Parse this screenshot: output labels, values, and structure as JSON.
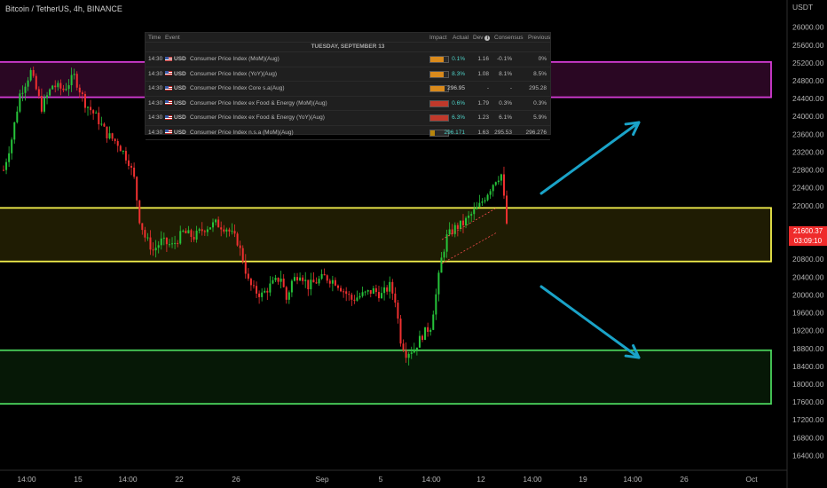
{
  "title": "Bitcoin / TetherUS, 4h, BINANCE",
  "currency": "USDT",
  "current_price": "21600.37",
  "countdown": "03:09:10",
  "colors": {
    "up": "#26c43a",
    "down": "#ef3030",
    "resistance": "#d63cd6",
    "mid": "#f3ef4c",
    "support": "#4ad25c",
    "arrow": "#1aa3c8"
  },
  "calendar": {
    "headers": {
      "time": "Time",
      "event": "Event",
      "impact": "Impact",
      "actual": "Actual",
      "dev": "Dev",
      "consensus": "Consensus",
      "previous": "Previous"
    },
    "date": "TUESDAY, SEPTEMBER 13",
    "rows": [
      {
        "time": "14:30",
        "cur": "USD",
        "event": "Consumer Price Index (MoM)(Aug)",
        "actual": "0.1%",
        "dev": "1.16",
        "consensus": "-0.1%",
        "previous": "0%",
        "impact_color": "#d98a1c",
        "impact_level": 0.75,
        "actual_color": "#4fd2c8"
      },
      {
        "time": "14:30",
        "cur": "USD",
        "event": "Consumer Price Index (YoY)(Aug)",
        "actual": "8.3%",
        "dev": "1.08",
        "consensus": "8.1%",
        "previous": "8.5%",
        "impact_color": "#d98a1c",
        "impact_level": 0.75,
        "actual_color": "#4fd2c8"
      },
      {
        "time": "14:30",
        "cur": "USD",
        "event": "Consumer Price Index Core s.a(Aug)",
        "actual": "296.95",
        "dev": "-",
        "consensus": "-",
        "previous": "295.28",
        "impact_color": "#d98a1c",
        "impact_level": 0.8,
        "actual_color": "#cfcfcf"
      },
      {
        "time": "14:30",
        "cur": "USD",
        "event": "Consumer Price Index ex Food & Energy (MoM)(Aug)",
        "actual": "0.6%",
        "dev": "1.79",
        "consensus": "0.3%",
        "previous": "0.3%",
        "impact_color": "#c0392b",
        "impact_level": 1.0,
        "actual_color": "#4fd2c8"
      },
      {
        "time": "14:30",
        "cur": "USD",
        "event": "Consumer Price Index ex Food & Energy (YoY)(Aug)",
        "actual": "6.3%",
        "dev": "1.23",
        "consensus": "6.1%",
        "previous": "5.9%",
        "impact_color": "#c0392b",
        "impact_level": 1.0,
        "actual_color": "#4fd2c8"
      },
      {
        "time": "14:30",
        "cur": "USD",
        "event": "Consumer Price Index n.s.a (MoM)(Aug)",
        "actual": "296.171",
        "dev": "1.63",
        "consensus": "295.53",
        "previous": "296.276",
        "impact_color": "#b8860b",
        "impact_level": 0.25,
        "actual_color": "#4fd2c8"
      }
    ]
  },
  "chart_data": {
    "type": "candlestick",
    "y_axis_labels": [
      "26000.00",
      "25600.00",
      "25200.00",
      "24800.00",
      "24400.00",
      "24000.00",
      "23600.00",
      "23200.00",
      "22800.00",
      "22400.00",
      "22000.00",
      "21600.00",
      "21200.00",
      "20800.00",
      "20400.00",
      "20000.00",
      "19600.00",
      "19200.00",
      "18800.00",
      "18400.00",
      "18000.00",
      "17600.00",
      "17200.00",
      "16800.00",
      "16400.00"
    ],
    "ylim": [
      16250,
      26450
    ],
    "x_axis_labels": [
      "14:00",
      "15",
      "14:00",
      "22",
      "26",
      "Sep",
      "5",
      "14:00",
      "12",
      "14:00",
      "19",
      "14:00",
      "26",
      "Oct"
    ],
    "zones": [
      {
        "name": "resistance",
        "low": 24430,
        "high": 25220
      },
      {
        "name": "mid",
        "low": 20750,
        "high": 21950
      },
      {
        "name": "support",
        "low": 17560,
        "high": 18760
      }
    ],
    "path": [
      [
        0,
        22800
      ],
      [
        3,
        23500
      ],
      [
        6,
        24500
      ],
      [
        10,
        25000
      ],
      [
        14,
        24200
      ],
      [
        18,
        24700
      ],
      [
        22,
        24600
      ],
      [
        26,
        24900
      ],
      [
        30,
        24300
      ],
      [
        34,
        24000
      ],
      [
        38,
        23600
      ],
      [
        42,
        23400
      ],
      [
        46,
        23000
      ],
      [
        48,
        22600
      ],
      [
        50,
        21700
      ],
      [
        52,
        21300
      ],
      [
        55,
        21000
      ],
      [
        58,
        21200
      ],
      [
        62,
        21100
      ],
      [
        66,
        21400
      ],
      [
        70,
        21300
      ],
      [
        74,
        21500
      ],
      [
        78,
        21600
      ],
      [
        82,
        21500
      ],
      [
        86,
        21200
      ],
      [
        88,
        20800
      ],
      [
        90,
        20300
      ],
      [
        92,
        20100
      ],
      [
        95,
        20000
      ],
      [
        98,
        20200
      ],
      [
        102,
        20400
      ],
      [
        104,
        19900
      ],
      [
        106,
        20300
      ],
      [
        109,
        20500
      ],
      [
        112,
        20200
      ],
      [
        115,
        20300
      ],
      [
        118,
        20400
      ],
      [
        122,
        20300
      ],
      [
        125,
        20100
      ],
      [
        128,
        19900
      ],
      [
        132,
        20000
      ],
      [
        136,
        20100
      ],
      [
        139,
        20000
      ],
      [
        142,
        20200
      ],
      [
        144,
        19900
      ],
      [
        146,
        19000
      ],
      [
        148,
        18700
      ],
      [
        151,
        18800
      ],
      [
        154,
        19100
      ],
      [
        157,
        19300
      ],
      [
        159,
        20000
      ],
      [
        161,
        20800
      ],
      [
        163,
        21300
      ],
      [
        166,
        21500
      ],
      [
        169,
        21600
      ],
      [
        172,
        21800
      ],
      [
        175,
        22000
      ],
      [
        178,
        22300
      ],
      [
        181,
        22600
      ],
      [
        183,
        22700
      ],
      [
        185,
        21600
      ]
    ],
    "n_candles": 186
  }
}
